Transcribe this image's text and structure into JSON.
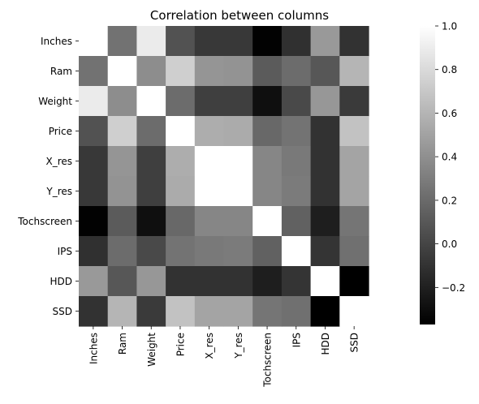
{
  "chart_data": {
    "type": "heatmap",
    "title": "Correlation between columns",
    "xlabel": "",
    "ylabel": "",
    "rows": [
      "Inches",
      "Ram",
      "Weight",
      "Price",
      "X_res",
      "Y_res",
      "Tochscreen",
      "IPS",
      "HDD",
      "SSD"
    ],
    "columns": [
      "Inches",
      "Ram",
      "Weight",
      "Price",
      "X_res",
      "Y_res",
      "Tochscreen",
      "IPS",
      "HDD",
      "SSD"
    ],
    "values": [
      [
        1.0,
        0.24,
        0.89,
        0.07,
        -0.07,
        -0.07,
        -0.36,
        -0.11,
        0.45,
        -0.1
      ],
      [
        0.24,
        1.0,
        0.39,
        0.74,
        0.43,
        0.42,
        0.12,
        0.21,
        0.1,
        0.6
      ],
      [
        0.89,
        0.39,
        1.0,
        0.21,
        -0.03,
        -0.03,
        -0.29,
        0.02,
        0.44,
        -0.06
      ],
      [
        0.07,
        0.74,
        0.21,
        1.0,
        0.56,
        0.55,
        0.19,
        0.25,
        -0.1,
        0.67
      ],
      [
        -0.07,
        0.43,
        -0.03,
        0.56,
        1.0,
        1.0,
        0.35,
        0.28,
        -0.1,
        0.51
      ],
      [
        -0.07,
        0.42,
        -0.03,
        0.55,
        1.0,
        1.0,
        0.35,
        0.29,
        -0.1,
        0.51
      ],
      [
        -0.36,
        0.12,
        -0.29,
        0.19,
        0.35,
        0.35,
        1.0,
        0.15,
        -0.21,
        0.26
      ],
      [
        -0.11,
        0.21,
        0.02,
        0.25,
        0.28,
        0.29,
        0.15,
        1.0,
        -0.09,
        0.23
      ],
      [
        0.45,
        0.1,
        0.44,
        -0.1,
        -0.1,
        -0.1,
        -0.21,
        -0.09,
        1.0,
        -0.4
      ],
      [
        -0.1,
        0.6,
        -0.06,
        0.67,
        0.51,
        0.51,
        0.26,
        0.23,
        -0.4,
        1.0
      ]
    ],
    "colormap": "gray",
    "vmin": -0.37,
    "vmax": 1.0,
    "colorbar_ticks": [
      1.0,
      0.8,
      0.6,
      0.4,
      0.2,
      0.0,
      -0.2
    ],
    "colorbar_tick_labels": [
      "1.0",
      "0.8",
      "0.6",
      "0.4",
      "0.2",
      "0.0",
      "−0.2"
    ],
    "grid": false
  }
}
